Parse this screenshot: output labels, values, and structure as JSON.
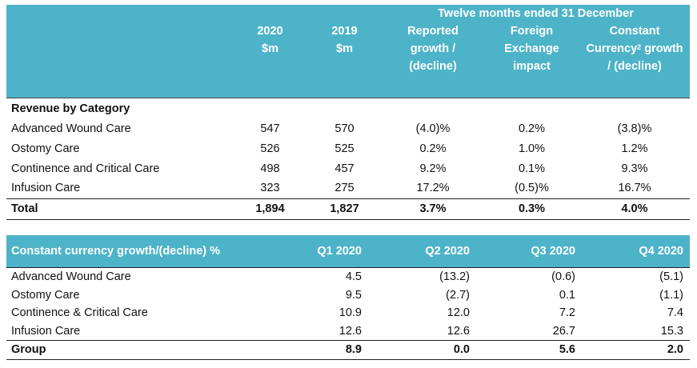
{
  "table1": {
    "super_header": "Twelve months ended 31 December",
    "columns": [
      {
        "line1": "2020",
        "line2": "$m",
        "line3": ""
      },
      {
        "line1": "2019",
        "line2": "$m",
        "line3": ""
      },
      {
        "line1": "Reported",
        "line2": "growth /",
        "line3": "(decline)"
      },
      {
        "line1": "Foreign",
        "line2": "Exchange",
        "line3": "impact"
      },
      {
        "line1": "Constant",
        "line2a": "Currency",
        "sup": "2",
        "line2b": " growth",
        "line3": "/ (decline)"
      }
    ],
    "section_label": "Revenue by Category",
    "rows": [
      {
        "label": "Advanced Wound Care",
        "v2020": "547",
        "v2019": "570",
        "reported": "(4.0)%",
        "fx": "0.2%",
        "constant": "(3.8)%"
      },
      {
        "label": "Ostomy Care",
        "v2020": "526",
        "v2019": "525",
        "reported": "0.2%",
        "fx": "1.0%",
        "constant": "1.2%"
      },
      {
        "label": "Continence and Critical Care",
        "v2020": "498",
        "v2019": "457",
        "reported": "9.2%",
        "fx": "0.1%",
        "constant": "9.3%"
      },
      {
        "label": "Infusion Care",
        "v2020": "323",
        "v2019": "275",
        "reported": "17.2%",
        "fx": "(0.5)%",
        "constant": "16.7%"
      }
    ],
    "total": {
      "label": "Total",
      "v2020": "1,894",
      "v2019": "1,827",
      "reported": "3.7%",
      "fx": "0.3%",
      "constant": "4.0%"
    }
  },
  "table2": {
    "header": "Constant currency growth/(decline) %",
    "quarters": [
      "Q1 2020",
      "Q2 2020",
      "Q3 2020",
      "Q4 2020"
    ],
    "rows": [
      {
        "label": "Advanced Wound Care",
        "values": [
          "4.5",
          "(13.2)",
          "(0.6)",
          "(5.1)"
        ]
      },
      {
        "label": "Ostomy Care",
        "values": [
          "9.5",
          "(2.7)",
          "0.1",
          "(1.1)"
        ]
      },
      {
        "label": "Continence & Critical Care",
        "values": [
          "10.9",
          "12.0",
          "7.2",
          "7.4"
        ]
      },
      {
        "label": "Infusion Care",
        "values": [
          "12.6",
          "12.6",
          "26.7",
          "15.3"
        ]
      }
    ],
    "group": {
      "label": "Group",
      "values": [
        "8.9",
        "0.0",
        "5.6",
        "2.0"
      ]
    }
  }
}
